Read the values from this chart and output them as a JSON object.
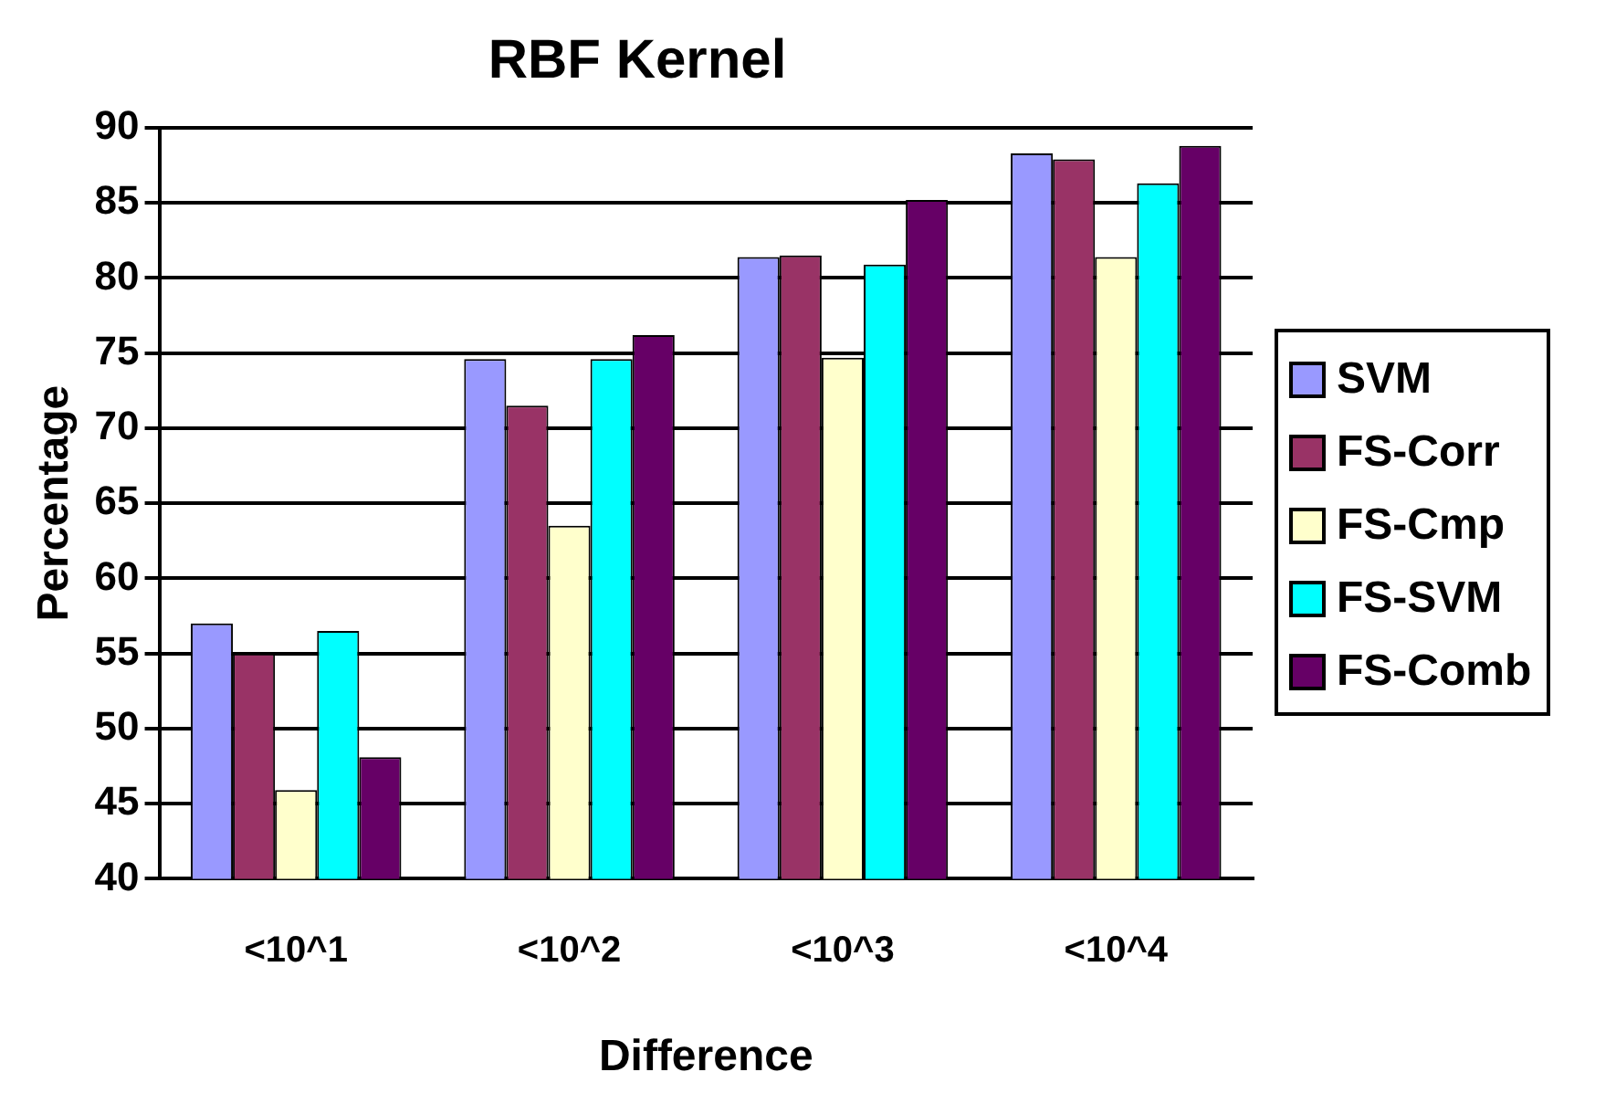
{
  "chart_data": {
    "type": "bar",
    "title": "RBF Kernel",
    "xlabel": "Difference",
    "ylabel": "Percentage",
    "categories": [
      "<10^1",
      "<10^2",
      "<10^3",
      "<10^4"
    ],
    "series": [
      {
        "name": "SVM",
        "color": "#9999ff",
        "values": [
          57.0,
          74.6,
          81.4,
          88.3
        ]
      },
      {
        "name": "FS-Corr",
        "color": "#993366",
        "values": [
          55.0,
          71.5,
          81.5,
          87.9
        ]
      },
      {
        "name": "FS-Cmp",
        "color": "#ffffcc",
        "values": [
          45.9,
          63.5,
          74.7,
          81.4
        ]
      },
      {
        "name": "FS-SVM",
        "color": "#00ffff",
        "values": [
          56.5,
          74.6,
          80.9,
          86.3
        ]
      },
      {
        "name": "FS-Comb",
        "color": "#660066",
        "values": [
          48.1,
          76.2,
          85.2,
          88.8
        ]
      }
    ],
    "ylim": [
      40,
      90
    ],
    "yticks": [
      40,
      45,
      50,
      55,
      60,
      65,
      70,
      75,
      80,
      85,
      90
    ],
    "grid": "y",
    "legend": "right"
  }
}
